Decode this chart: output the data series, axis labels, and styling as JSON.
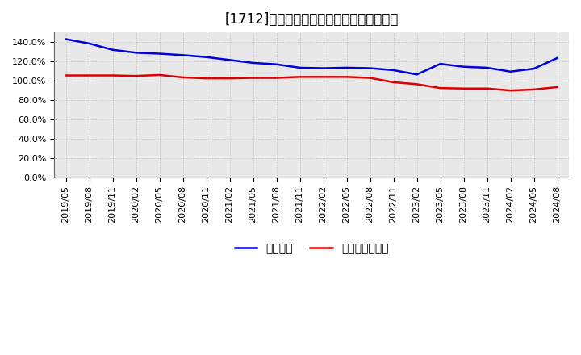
{
  "title": "[1712]　固定比率、固定長期適合率の推移",
  "series1_label": "固定比率",
  "series2_label": "固定長期適合率",
  "series1_color": "#0000dd",
  "series2_color": "#dd0000",
  "background_color": "#ffffff",
  "plot_bg_color": "#e8e8e8",
  "grid_color": "#bbbbbb",
  "ylim": [
    0.0,
    1.5
  ],
  "ytick_values": [
    0.0,
    0.2,
    0.4,
    0.6,
    0.8,
    1.0,
    1.2,
    1.4
  ],
  "x_labels": [
    "2019/05",
    "2019/08",
    "2019/11",
    "2020/02",
    "2020/05",
    "2020/08",
    "2020/11",
    "2021/02",
    "2021/05",
    "2021/08",
    "2021/11",
    "2022/02",
    "2022/05",
    "2022/08",
    "2022/11",
    "2023/02",
    "2023/05",
    "2023/08",
    "2023/11",
    "2024/02",
    "2024/05",
    "2024/08"
  ],
  "series1_values": [
    1.43,
    1.385,
    1.32,
    1.29,
    1.28,
    1.265,
    1.245,
    1.215,
    1.185,
    1.17,
    1.135,
    1.13,
    1.135,
    1.13,
    1.11,
    1.065,
    1.175,
    1.145,
    1.135,
    1.095,
    1.125,
    1.235
  ],
  "series2_values": [
    1.055,
    1.055,
    1.055,
    1.05,
    1.06,
    1.035,
    1.025,
    1.025,
    1.03,
    1.03,
    1.04,
    1.04,
    1.04,
    1.03,
    0.985,
    0.965,
    0.925,
    0.92,
    0.92,
    0.9,
    0.91,
    0.935
  ],
  "line_width": 1.8,
  "title_fontsize": 12,
  "legend_fontsize": 10,
  "tick_fontsize": 8
}
